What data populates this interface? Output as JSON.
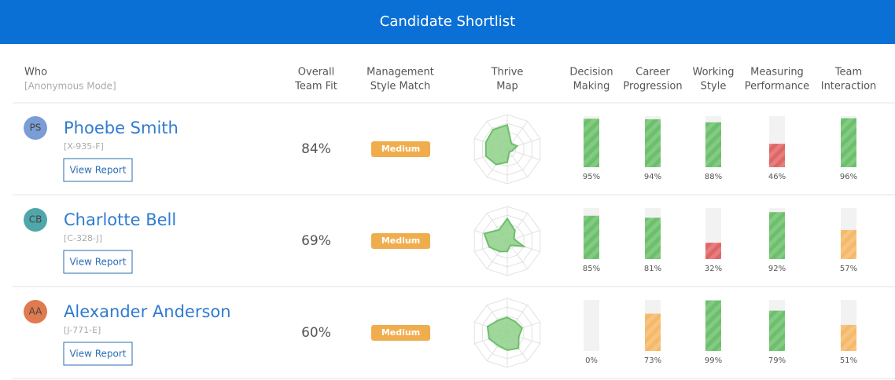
{
  "header": {
    "title": "Candidate Shortlist"
  },
  "table": {
    "columns": [
      {
        "lines": [
          "Who"
        ],
        "note": "[Anonymous Mode]"
      },
      {
        "lines": [
          "Overall",
          "Team Fit"
        ]
      },
      {
        "lines": [
          "Management",
          "Style Match"
        ]
      },
      {
        "lines": [
          "Thrive",
          "Map"
        ]
      },
      {
        "lines": [
          "Decision",
          "Making"
        ]
      },
      {
        "lines": [
          "Career",
          "Progression"
        ]
      },
      {
        "lines": [
          "Working",
          "Style"
        ]
      },
      {
        "lines": [
          "Measuring",
          "Performance"
        ]
      },
      {
        "lines": [
          "Team",
          "Interaction"
        ]
      }
    ],
    "score_range": [
      0,
      100
    ],
    "thrive_map_range": [
      0,
      4
    ],
    "rows": [
      {
        "initials": "PS",
        "avatar_color": "#7b9dd6",
        "name": "Phoebe Smith",
        "id": "[X-935-F]",
        "button": "View Report",
        "team_fit": "84%",
        "style_match": "Medium",
        "style_color": "#f0ad4e",
        "thrive_map": [
          2.8,
          0.8,
          1.2,
          0.6,
          0.4,
          1.5,
          2.2,
          2.6,
          2.6,
          2.8
        ],
        "scores": [
          {
            "value": 95,
            "label": "95%",
            "color": "#6cc06c"
          },
          {
            "value": 94,
            "label": "94%",
            "color": "#6cc06c"
          },
          {
            "value": 88,
            "label": "88%",
            "color": "#6cc06c"
          },
          {
            "value": 46,
            "label": "46%",
            "color": "#e06666"
          },
          {
            "value": 96,
            "label": "96%",
            "color": "#6cc06c"
          }
        ]
      },
      {
        "initials": "CB",
        "avatar_color": "#4fa7aa",
        "name": "Charlotte Bell",
        "id": "[C-328-J]",
        "button": "View Report",
        "team_fit": "69%",
        "style_match": "Medium",
        "style_color": "#f0ad4e",
        "thrive_map": [
          2.6,
          1.5,
          0.8,
          2.0,
          0.6,
          1.2,
          1.5,
          2.2,
          2.8,
          1.6
        ],
        "scores": [
          {
            "value": 85,
            "label": "85%",
            "color": "#6cc06c"
          },
          {
            "value": 81,
            "label": "81%",
            "color": "#6cc06c"
          },
          {
            "value": 32,
            "label": "32%",
            "color": "#e06666"
          },
          {
            "value": 92,
            "label": "92%",
            "color": "#6cc06c"
          },
          {
            "value": 57,
            "label": "57%",
            "color": "#f5b96a"
          }
        ]
      },
      {
        "initials": "AA",
        "avatar_color": "#e07a4f",
        "name": "Alexander Anderson",
        "id": "[J-771-E]",
        "button": "View Report",
        "team_fit": "60%",
        "style_match": "Medium",
        "style_color": "#f0ad4e",
        "thrive_map": [
          1.8,
          1.6,
          1.8,
          1.4,
          2.2,
          2.0,
          1.8,
          2.2,
          2.4,
          1.8
        ],
        "scores": [
          {
            "value": 0,
            "label": "0%",
            "color": "#f5b96a"
          },
          {
            "value": 73,
            "label": "73%",
            "color": "#f5b96a"
          },
          {
            "value": 99,
            "label": "99%",
            "color": "#6cc06c"
          },
          {
            "value": 79,
            "label": "79%",
            "color": "#6cc06c"
          },
          {
            "value": 51,
            "label": "51%",
            "color": "#f5b96a"
          }
        ]
      }
    ]
  }
}
